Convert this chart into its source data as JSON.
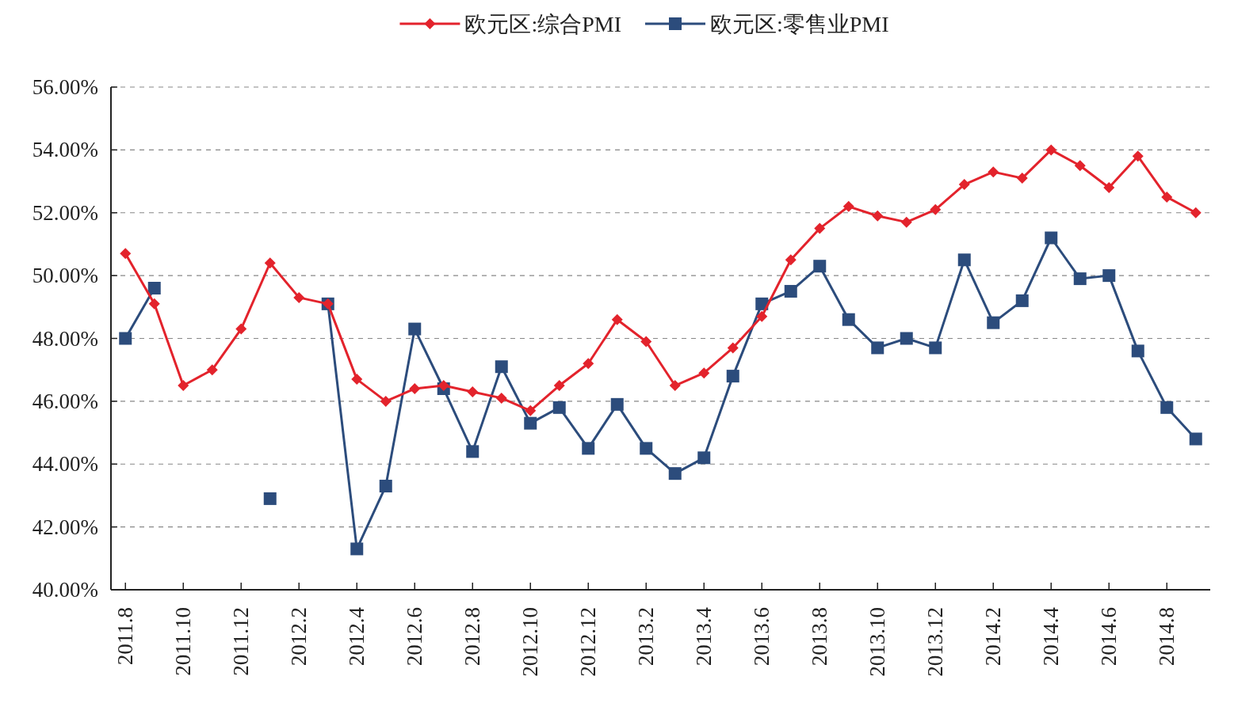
{
  "chart_data": {
    "type": "line",
    "categories": [
      "2011.8",
      null,
      "2011.10",
      null,
      "2011.12",
      null,
      "2012.2",
      null,
      "2012.4",
      null,
      "2012.6",
      null,
      "2012.8",
      null,
      "2012.10",
      null,
      "2012.12",
      null,
      "2013.2",
      null,
      "2013.4",
      null,
      "2013.6",
      null,
      "2013.8",
      null,
      "2013.10",
      null,
      "2013.12",
      null,
      "2014.2",
      null,
      "2014.4",
      null,
      "2014.6",
      null,
      "2014.8",
      null
    ],
    "series": [
      {
        "name": "欧元区:综合PMI",
        "color": "#e3232c",
        "marker": "diamond",
        "values": [
          50.7,
          49.1,
          46.5,
          47.0,
          48.3,
          50.4,
          49.3,
          49.1,
          46.7,
          46.0,
          46.4,
          46.5,
          46.3,
          46.1,
          45.7,
          46.5,
          47.2,
          48.6,
          47.9,
          46.5,
          46.9,
          47.7,
          48.7,
          50.5,
          51.5,
          52.2,
          51.9,
          51.7,
          52.1,
          52.9,
          53.3,
          53.1,
          54.0,
          53.5,
          52.8,
          53.8,
          52.5,
          52.0
        ]
      },
      {
        "name": "欧元区:零售业PMI",
        "color": "#2c4c7c",
        "marker": "square",
        "values": [
          48.0,
          49.6,
          null,
          null,
          null,
          42.9,
          null,
          49.1,
          41.3,
          43.3,
          48.3,
          46.4,
          44.4,
          47.1,
          45.3,
          45.8,
          44.5,
          45.9,
          44.5,
          43.7,
          44.2,
          46.8,
          49.1,
          49.5,
          50.3,
          48.6,
          47.7,
          48.0,
          47.7,
          50.5,
          48.5,
          49.2,
          51.2,
          49.9,
          50.0,
          47.6,
          45.8,
          44.8
        ]
      }
    ],
    "ylim": [
      40,
      56
    ],
    "yticks": [
      {
        "value": 40,
        "label": "40.00%"
      },
      {
        "value": 42,
        "label": "42.00%"
      },
      {
        "value": 44,
        "label": "44.00%"
      },
      {
        "value": 46,
        "label": "46.00%"
      },
      {
        "value": 48,
        "label": "48.00%"
      },
      {
        "value": 50,
        "label": "50.00%"
      },
      {
        "value": 52,
        "label": "52.00%"
      },
      {
        "value": 54,
        "label": "54.00%"
      },
      {
        "value": 56,
        "label": "56.00%"
      }
    ],
    "grid": "y",
    "legend": "top",
    "line_style": "solid"
  }
}
